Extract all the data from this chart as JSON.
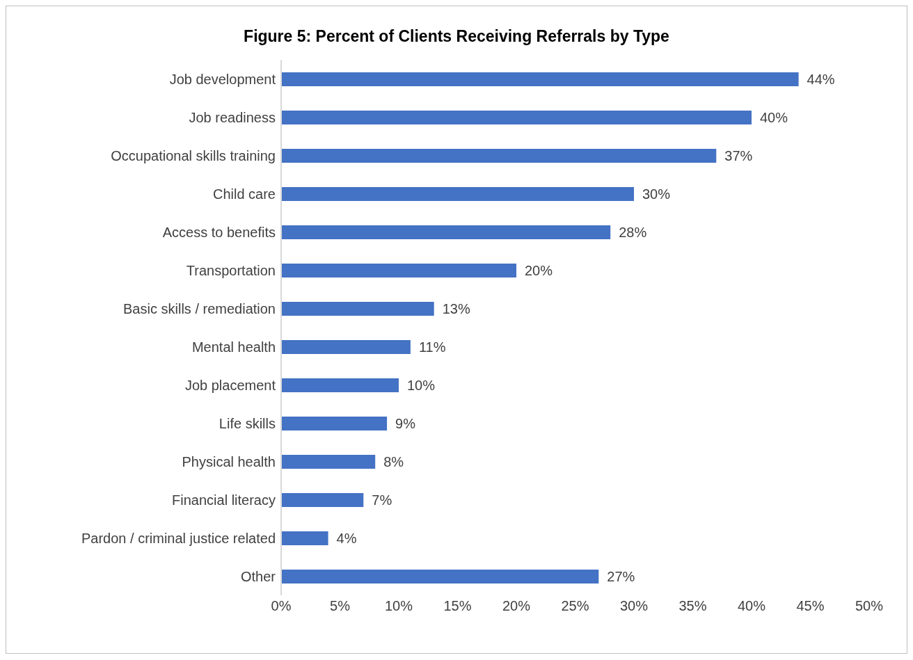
{
  "chart_data": {
    "type": "bar",
    "orientation": "horizontal",
    "title": "Figure 5:  Percent of Clients Receiving Referrals by Type",
    "categories": [
      "Job development",
      "Job readiness",
      "Occupational skills training",
      "Child care",
      "Access to benefits",
      "Transportation",
      "Basic skills / remediation",
      "Mental health",
      "Job placement",
      "Life skills",
      "Physical health",
      "Financial literacy",
      "Pardon / criminal justice related",
      "Other"
    ],
    "values": [
      44,
      40,
      37,
      30,
      28,
      20,
      13,
      11,
      10,
      9,
      8,
      7,
      4,
      27
    ],
    "value_labels": [
      "44%",
      "40%",
      "37%",
      "30%",
      "28%",
      "20%",
      "13%",
      "11%",
      "10%",
      "9%",
      "8%",
      "7%",
      "4%",
      "27%"
    ],
    "color": "#4472c4",
    "xlim": [
      0,
      50
    ],
    "xticks": [
      {
        "value": 0,
        "label": "0%"
      },
      {
        "value": 5,
        "label": "5%"
      },
      {
        "value": 10,
        "label": "10%"
      },
      {
        "value": 15,
        "label": "15%"
      },
      {
        "value": 20,
        "label": "20%"
      },
      {
        "value": 25,
        "label": "25%"
      },
      {
        "value": 30,
        "label": "30%"
      },
      {
        "value": 35,
        "label": "35%"
      },
      {
        "value": 40,
        "label": "40%"
      },
      {
        "value": 45,
        "label": "45%"
      },
      {
        "value": 50,
        "label": "50%"
      }
    ],
    "grid": false,
    "legend": false
  }
}
